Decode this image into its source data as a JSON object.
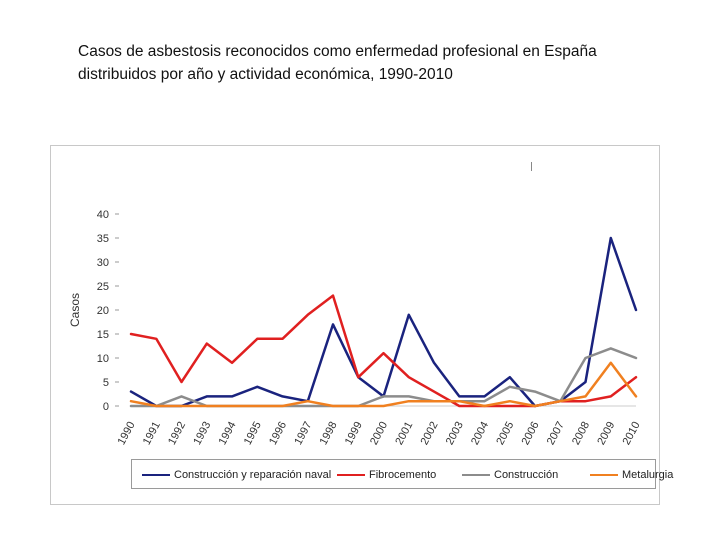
{
  "slide": {
    "title": "Casos de asbestosis reconocidos como enfermedad profesional en España\ndistribuidos por año y actividad económica, 1990-2010"
  },
  "chart_data": {
    "type": "line",
    "title": "",
    "xlabel": "",
    "ylabel": "Casos",
    "ylim": [
      0,
      40
    ],
    "yticks": [
      "0",
      "5",
      "10",
      "15",
      "20",
      "25",
      "30",
      "35",
      "40"
    ],
    "categories": [
      "1990",
      "1991",
      "1992",
      "1993",
      "1994",
      "1995",
      "1996",
      "1997",
      "1998",
      "1999",
      "2000",
      "2001",
      "2002",
      "2003",
      "2004",
      "2005",
      "2006",
      "2007",
      "2008",
      "2009",
      "2010"
    ],
    "series": [
      {
        "name": "Construcción y reparación naval",
        "color": "#1a237e",
        "values": [
          3,
          0,
          0,
          2,
          2,
          4,
          2,
          1,
          17,
          6,
          2,
          19,
          9,
          2,
          2,
          6,
          0,
          1,
          5,
          35,
          20
        ]
      },
      {
        "name": "Fibrocemento",
        "color": "#e02020",
        "values": [
          15,
          14,
          5,
          13,
          9,
          14,
          14,
          19,
          23,
          6,
          11,
          6,
          3,
          0,
          0,
          0,
          0,
          1,
          1,
          2,
          6
        ]
      },
      {
        "name": "Construcción",
        "color": "#8c8c8c",
        "values": [
          0,
          0,
          2,
          0,
          0,
          0,
          0,
          0,
          0,
          0,
          2,
          2,
          1,
          1,
          1,
          4,
          3,
          1,
          10,
          12,
          10
        ]
      },
      {
        "name": "Metalurgia",
        "color": "#f08020",
        "values": [
          1,
          0,
          0,
          0,
          0,
          0,
          0,
          1,
          0,
          0,
          0,
          1,
          1,
          1,
          0,
          1,
          0,
          1,
          2,
          9,
          2
        ]
      }
    ],
    "legend_position": "bottom"
  }
}
